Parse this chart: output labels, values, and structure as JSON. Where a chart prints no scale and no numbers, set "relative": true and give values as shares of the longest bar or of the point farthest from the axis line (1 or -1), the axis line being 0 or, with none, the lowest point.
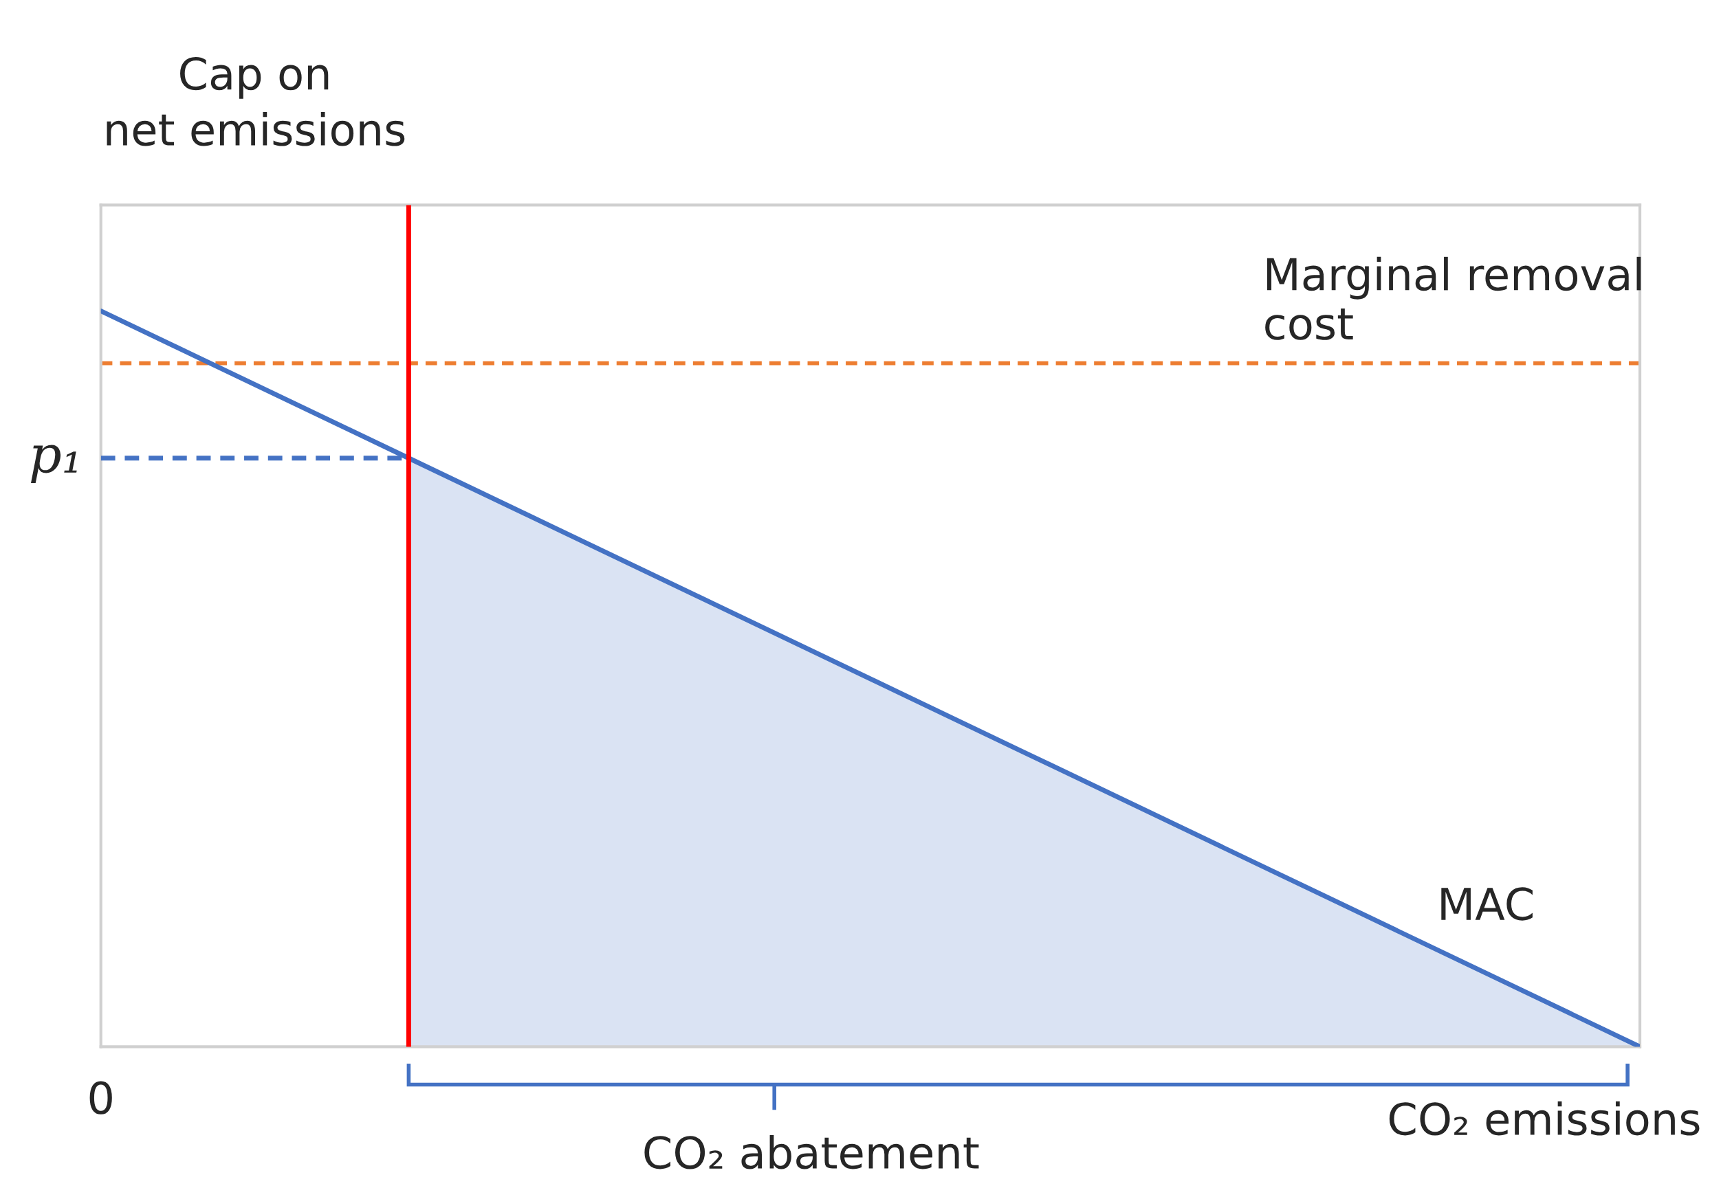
{
  "chart_data": {
    "type": "line",
    "relative": true,
    "xlabel": "CO₂ emissions",
    "legend": false,
    "categories": [
      null,
      null,
      null,
      null,
      null,
      null
    ],
    "series": [
      {
        "name": "MAC",
        "color": "#4472c4",
        "values": [
          1,
          0.8,
          0.6,
          0.4,
          0.2,
          0
        ],
        "line_style": "solid",
        "lower": [
          null,
          0,
          0,
          0,
          0,
          0
        ],
        "upper": [
          null,
          0.8,
          0.6,
          0.4,
          0.2,
          0
        ]
      },
      {
        "name": "p₁",
        "color": "#4472c4",
        "values": [
          0.8,
          0.8,
          null,
          null,
          null,
          null
        ],
        "line_style": "dashed"
      }
    ],
    "ref_lines": [
      {
        "axis": "y",
        "value": 0.929,
        "label": "Marginal removal cost",
        "color": "#ed7d31",
        "line_style": "dashed"
      }
    ],
    "annotations": [
      "Cap on net emissions",
      "CO₂ abatement",
      "0"
    ]
  }
}
